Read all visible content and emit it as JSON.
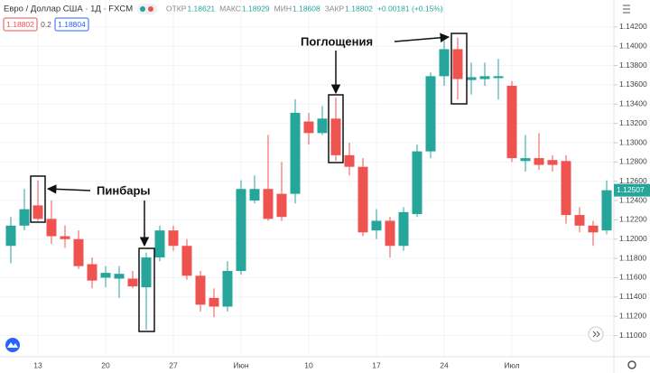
{
  "header": {
    "symbol": "Евро / Доллар США · 1Д · FXCM",
    "ohlc": [
      {
        "label": "ОТКР",
        "value": "1.18621"
      },
      {
        "label": "МАКС",
        "value": "1.18929"
      },
      {
        "label": "МИН",
        "value": "1.18608"
      },
      {
        "label": "ЗАКР",
        "value": "1.18802"
      }
    ],
    "change": "+0.00181 (+0.15%)",
    "sell": "1.18802",
    "spread": "0.2",
    "buy": "1.18804"
  },
  "chart_data": {
    "type": "candlestick",
    "annotations": [
      "Поглощения",
      "Пинбары"
    ],
    "categories": [
      null,
      null,
      "13",
      null,
      null,
      null,
      null,
      "20",
      null,
      null,
      null,
      null,
      "27",
      null,
      null,
      null,
      null,
      "Июн",
      null,
      null,
      null,
      null,
      "10",
      null,
      null,
      null,
      null,
      "17",
      null,
      null,
      null,
      null,
      "24",
      null,
      null,
      null,
      null,
      "Июл",
      null,
      null,
      null,
      null,
      null,
      null,
      null
    ],
    "open": [
      1.1193,
      1.1214,
      1.1235,
      1.1221,
      1.1203,
      1.12,
      1.1174,
      1.116,
      1.1159,
      1.1159,
      1.115,
      1.1181,
      1.1209,
      1.1193,
      1.1162,
      1.1139,
      1.113,
      1.1167,
      1.124,
      1.1252,
      1.1247,
      1.1247,
      1.1322,
      1.131,
      1.1325,
      1.1287,
      1.1275,
      1.1209,
      1.1219,
      1.1193,
      1.1226,
      1.1291,
      1.1369,
      1.1397,
      1.1365,
      1.1366,
      1.1367,
      1.1359,
      1.1281,
      1.1284,
      1.1282,
      1.1281,
      1.1225,
      1.1214,
      1.1209
    ],
    "high": [
      1.1223,
      1.1252,
      1.1261,
      1.124,
      1.1214,
      1.1209,
      1.1181,
      1.1172,
      1.1172,
      1.1167,
      1.1186,
      1.1214,
      1.1214,
      1.12,
      1.1167,
      1.1149,
      1.1177,
      1.1261,
      1.1266,
      1.1308,
      1.128,
      1.1345,
      1.1331,
      1.1338,
      1.1347,
      1.13,
      1.1284,
      1.1231,
      1.1223,
      1.1233,
      1.1298,
      1.1373,
      1.1406,
      1.1409,
      1.1383,
      1.1383,
      1.1387,
      1.1364,
      1.1308,
      1.131,
      1.1287,
      1.1287,
      1.1233,
      1.1219,
      1.1261
    ],
    "low": [
      1.1175,
      1.1209,
      1.1219,
      1.1195,
      1.1191,
      1.1169,
      1.1149,
      1.115,
      1.1139,
      1.1149,
      1.1106,
      1.1177,
      1.1188,
      1.1158,
      1.1125,
      1.1119,
      1.1125,
      1.1163,
      1.1237,
      1.1219,
      1.1219,
      1.1237,
      1.1298,
      1.1308,
      1.1281,
      1.1266,
      1.1203,
      1.12,
      1.1181,
      1.1188,
      1.1223,
      1.1284,
      1.1359,
      1.1345,
      1.135,
      1.1359,
      1.1345,
      1.128,
      1.127,
      1.1272,
      1.127,
      1.1216,
      1.1207,
      1.1193,
      1.1205
    ],
    "close": [
      1.1214,
      1.1231,
      1.1221,
      1.1203,
      1.12,
      1.1172,
      1.1157,
      1.1165,
      1.1164,
      1.1151,
      1.1181,
      1.1209,
      1.1193,
      1.1162,
      1.1132,
      1.113,
      1.1167,
      1.1252,
      1.1252,
      1.1221,
      1.1223,
      1.1331,
      1.131,
      1.1325,
      1.1287,
      1.1275,
      1.1207,
      1.1219,
      1.1193,
      1.1228,
      1.1291,
      1.1369,
      1.1397,
      1.1366,
      1.1368,
      1.1369,
      1.1369,
      1.1284,
      1.1284,
      1.1277,
      1.1277,
      1.1225,
      1.1214,
      1.1207,
      1.12507
    ],
    "up_color": "#26a69a",
    "down_color": "#ef5350",
    "ylim": [
      1.1078,
      1.1448
    ],
    "yticks": [
      {
        "value": 1.11,
        "label": "1.11000"
      },
      {
        "value": 1.112,
        "label": "1.11200"
      },
      {
        "value": 1.114,
        "label": "1.11400"
      },
      {
        "value": 1.116,
        "label": "1.11600"
      },
      {
        "value": 1.118,
        "label": "1.11800"
      },
      {
        "value": 1.12,
        "label": "1.12000"
      },
      {
        "value": 1.122,
        "label": "1.12200"
      },
      {
        "value": 1.124,
        "label": "1.12400"
      },
      {
        "value": 1.126,
        "label": "1.12600"
      },
      {
        "value": 1.128,
        "label": "1.12800"
      },
      {
        "value": 1.13,
        "label": "1.13000"
      },
      {
        "value": 1.132,
        "label": "1.13200"
      },
      {
        "value": 1.134,
        "label": "1.13400"
      },
      {
        "value": 1.136,
        "label": "1.13600"
      },
      {
        "value": 1.138,
        "label": "1.13800"
      },
      {
        "value": 1.14,
        "label": "1.14000"
      },
      {
        "value": 1.142,
        "label": "1.14200"
      }
    ],
    "grid": true
  }
}
